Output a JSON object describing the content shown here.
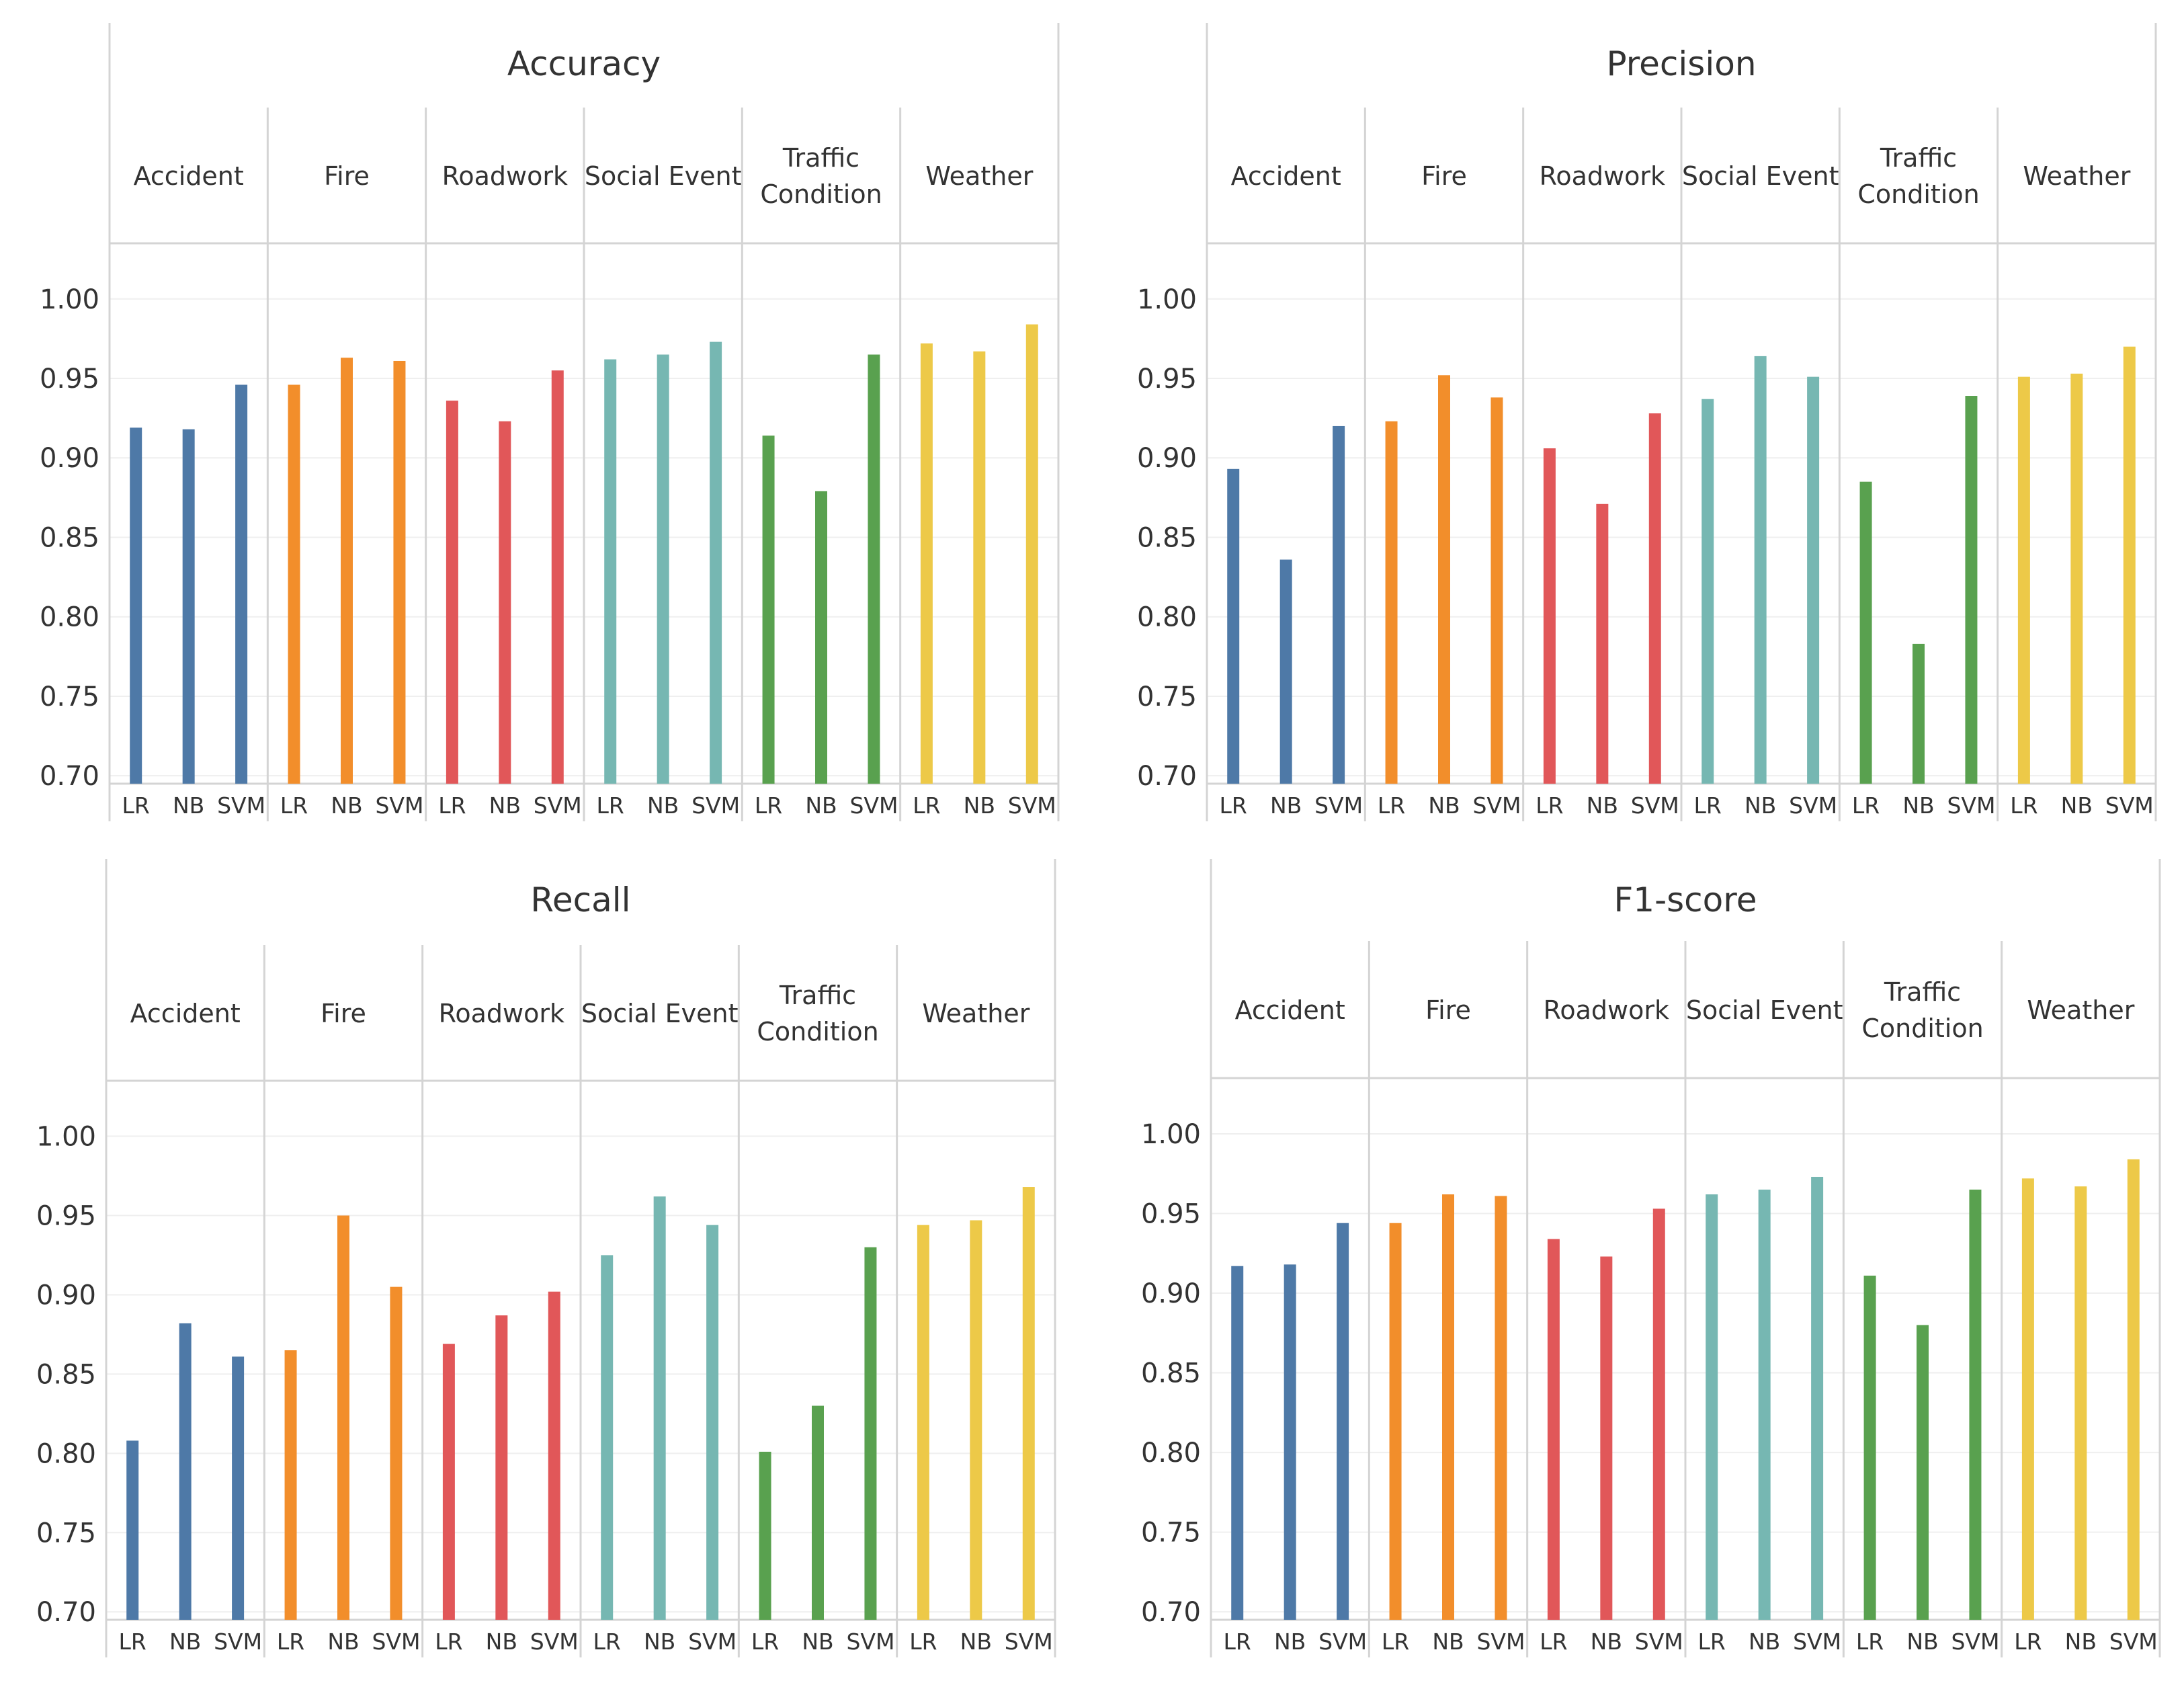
{
  "chart_data": [
    {
      "type": "bar",
      "title": "Accuracy",
      "categories": [
        "Accident",
        "Fire",
        "Roadwork",
        "Social Event",
        "Traffic Condition",
        "Weather"
      ],
      "models": [
        "LR",
        "NB",
        "SVM"
      ],
      "ylim": [
        0.695,
        1.035
      ],
      "yticks": [
        "1.00",
        "0.95",
        "0.90",
        "0.85",
        "0.80",
        "0.75",
        "0.70"
      ],
      "values": [
        [
          0.919,
          0.918,
          0.946
        ],
        [
          0.946,
          0.963,
          0.961
        ],
        [
          0.936,
          0.923,
          0.955
        ],
        [
          0.962,
          0.965,
          0.973
        ],
        [
          0.914,
          0.879,
          0.965
        ],
        [
          0.972,
          0.967,
          0.984
        ]
      ]
    },
    {
      "type": "bar",
      "title": "Precision",
      "categories": [
        "Accident",
        "Fire",
        "Roadwork",
        "Social Event",
        "Traffic Condition",
        "Weather"
      ],
      "models": [
        "LR",
        "NB",
        "SVM"
      ],
      "ylim": [
        0.695,
        1.035
      ],
      "yticks": [
        "1.00",
        "0.95",
        "0.90",
        "0.85",
        "0.80",
        "0.75",
        "0.70"
      ],
      "values": [
        [
          0.893,
          0.836,
          0.92
        ],
        [
          0.923,
          0.952,
          0.938
        ],
        [
          0.906,
          0.871,
          0.928
        ],
        [
          0.937,
          0.964,
          0.951
        ],
        [
          0.885,
          0.783,
          0.939
        ],
        [
          0.951,
          0.953,
          0.97
        ]
      ]
    },
    {
      "type": "bar",
      "title": "Recall",
      "categories": [
        "Accident",
        "Fire",
        "Roadwork",
        "Social Event",
        "Traffic Condition",
        "Weather"
      ],
      "models": [
        "LR",
        "NB",
        "SVM"
      ],
      "ylim": [
        0.695,
        1.035
      ],
      "yticks": [
        "1.00",
        "0.95",
        "0.90",
        "0.85",
        "0.80",
        "0.75",
        "0.70"
      ],
      "values": [
        [
          0.808,
          0.882,
          0.861
        ],
        [
          0.865,
          0.95,
          0.905
        ],
        [
          0.869,
          0.887,
          0.902
        ],
        [
          0.925,
          0.962,
          0.944
        ],
        [
          0.801,
          0.83,
          0.93
        ],
        [
          0.944,
          0.947,
          0.968
        ]
      ]
    },
    {
      "type": "bar",
      "title": "F1-score",
      "categories": [
        "Accident",
        "Fire",
        "Roadwork",
        "Social Event",
        "Traffic Condition",
        "Weather"
      ],
      "models": [
        "LR",
        "NB",
        "SVM"
      ],
      "ylim": [
        0.695,
        1.035
      ],
      "yticks": [
        "1.00",
        "0.95",
        "0.90",
        "0.85",
        "0.80",
        "0.75",
        "0.70"
      ],
      "values": [
        [
          0.917,
          0.918,
          0.944
        ],
        [
          0.944,
          0.962,
          0.961
        ],
        [
          0.934,
          0.923,
          0.953
        ],
        [
          0.962,
          0.965,
          0.973
        ],
        [
          0.911,
          0.88,
          0.965
        ],
        [
          0.972,
          0.967,
          0.984
        ]
      ]
    }
  ],
  "colors": [
    "#4e79a7",
    "#f28e2b",
    "#e15759",
    "#76b7b2",
    "#59a14f",
    "#edc948"
  ]
}
